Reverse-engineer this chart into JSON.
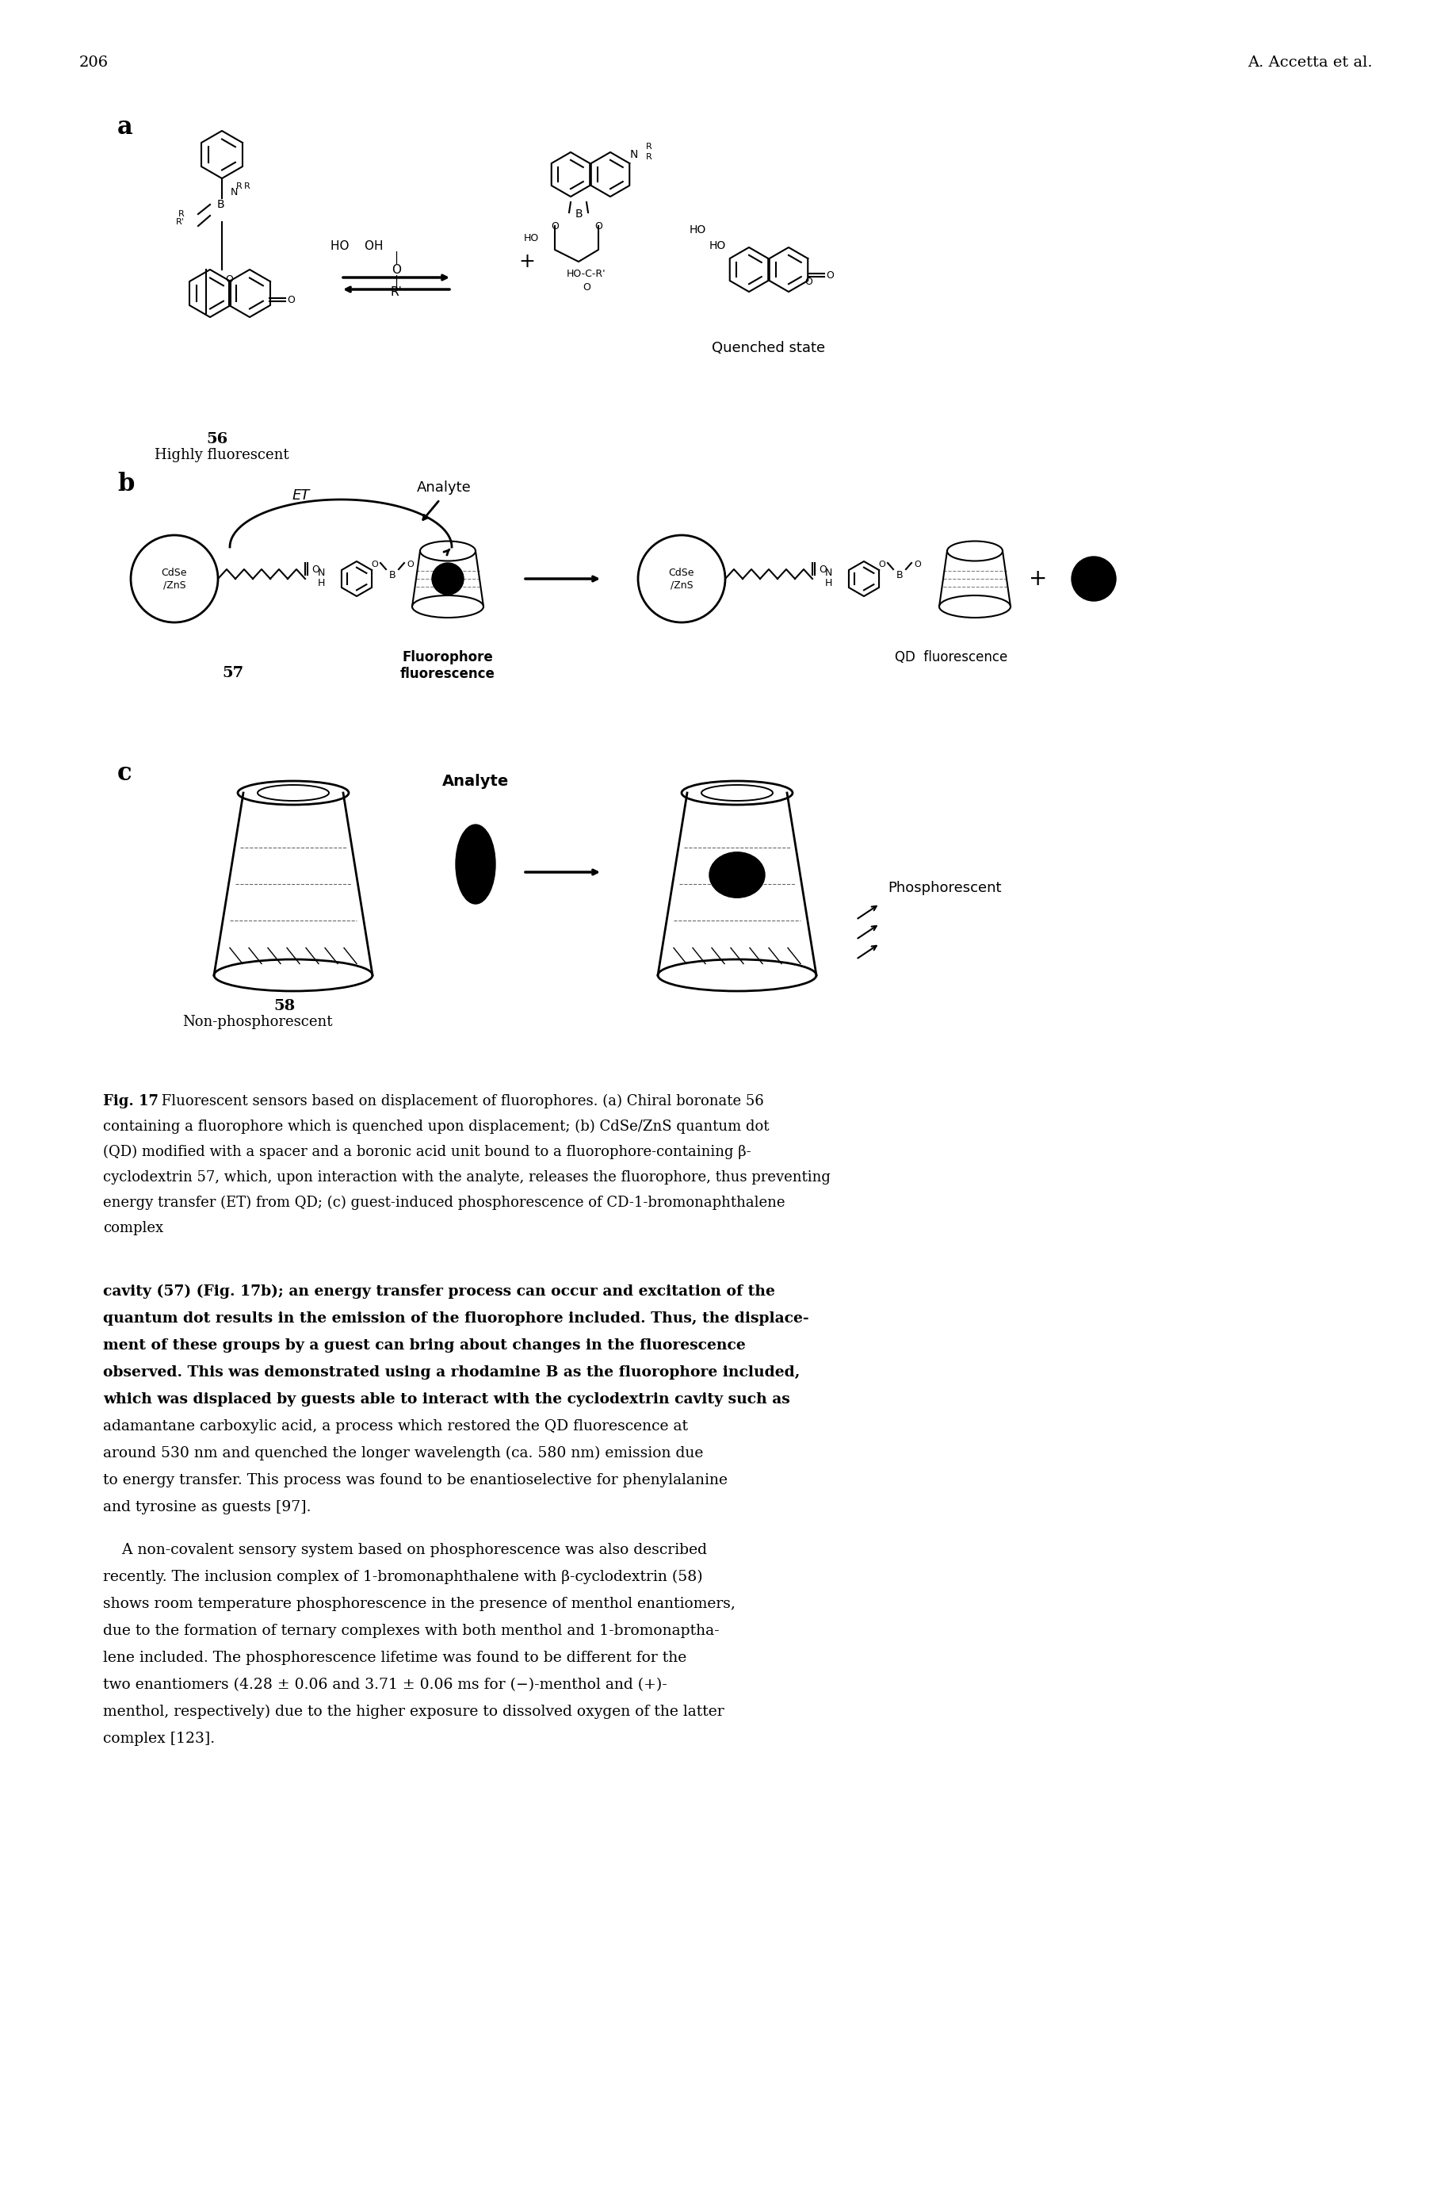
{
  "page_number": "206",
  "header_right": "A. Accetta et al.",
  "background_color": "#ffffff",
  "text_color": "#000000",
  "fig_caption_bold": "Fig. 17",
  "fig_caption_text": " Fluorescent sensors based on displacement of fluorophores. (a) Chiral boronate 56 containing a fluorophore which is quenched upon displacement; (b) CdSe/ZnS quantum dot (QD) modified with a spacer and a boronic acid unit bound to a fluorophore-containing β-cyclodextrin 57, which, upon interaction with the analyte, releases the fluorophore, thus preventing energy transfer (ET) from QD; (c) guest-induced phosphorescence of CD-1-bromonaphthalene complex",
  "panel_a_label": "a",
  "panel_b_label": "b",
  "panel_c_label": "c",
  "label_56": "56",
  "label_57": "57",
  "label_58": "58",
  "label_highly_fluorescent": "Highly fluorescent",
  "label_quenched_state": "Quenched state",
  "label_fluorophore_fluorescence": "Fluorophore\nfluorescence",
  "label_QD_fluorescence": "QD  fluorescence",
  "label_non_phosphorescent": "Non-phosphorescent",
  "label_phosphorescent": "Phosphorescent",
  "label_ET": "ET",
  "label_analyte_b": "Analyte",
  "label_analyte_c": "Analyte",
  "body_text_paragraphs": [
    "cavity (57) (Fig. 17b); an energy transfer process can occur and excitation of the quantum dot results in the emission of the fluorophore included. Thus, the displacement of these groups by a guest can bring about changes in the fluorescence observed. This was demonstrated using a rhodamine B as the fluorophore included, which was displaced by guests able to interact with the cyclodextrin cavity such as adamantane carboxylic acid, a process which restored the QD fluorescence at around 530 nm and quenched the longer wavelength (ca. 580 nm) emission due to energy transfer. This process was found to be enantioselective for phenylalanine and tyrosine as guests [97].",
    "A non-covalent sensory system based on phosphorescence was also described recently. The inclusion complex of 1-bromonaphthalene with β-cyclodextrin (58) shows room temperature phosphorescence in the presence of menthol enantiomers, due to the formation of ternary complexes with both menthol and 1-bromonaphthalene included. The phosphorescence lifetime was found to be different for the two enantiomers (4.28 ± 0.06 and 3.71 ± 0.06 ms for (−)-menthol and (+)-menthol, respectively) due to the higher exposure to dissolved oxygen of the latter complex [123]."
  ]
}
